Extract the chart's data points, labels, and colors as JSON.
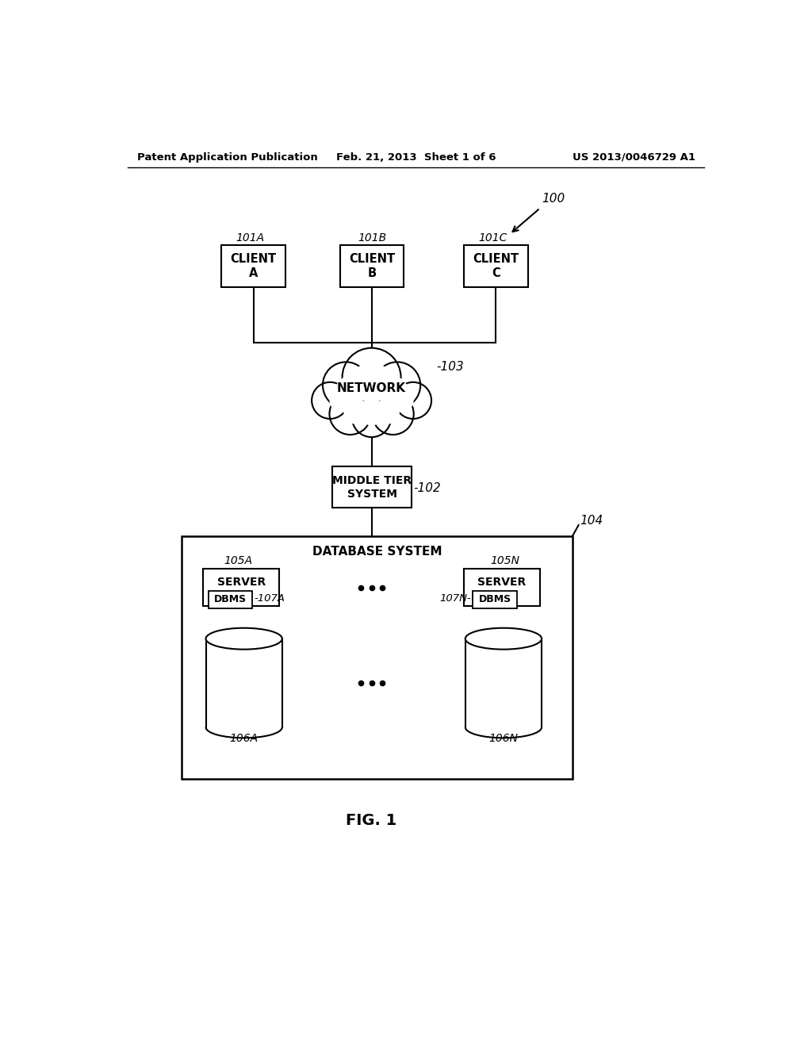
{
  "bg_color": "#ffffff",
  "header_left": "Patent Application Publication",
  "header_mid": "Feb. 21, 2013  Sheet 1 of 6",
  "header_right": "US 2013/0046729 A1",
  "fig_label": "FIG. 1",
  "label_100": "100",
  "label_101A": "101A",
  "label_101B": "101B",
  "label_101C": "101C",
  "label_103": "-103",
  "label_102": "-102",
  "label_104": "104",
  "label_105A": "105A",
  "label_105N": "105N",
  "label_107A": "-107A",
  "label_107N": "107N-",
  "label_106A": "106A",
  "label_106N": "106N",
  "text_clientA": "CLIENT\nA",
  "text_clientB": "CLIENT\nB",
  "text_clientC": "CLIENT\nC",
  "text_network": "NETWORK",
  "text_middletier": "MIDDLE TIER\nSYSTEM",
  "text_dbsystem": "DATABASE SYSTEM",
  "text_serverA": "SERVER",
  "text_serverN": "SERVER",
  "text_dbmsA": "DBMS",
  "text_dbmsN": "DBMS"
}
